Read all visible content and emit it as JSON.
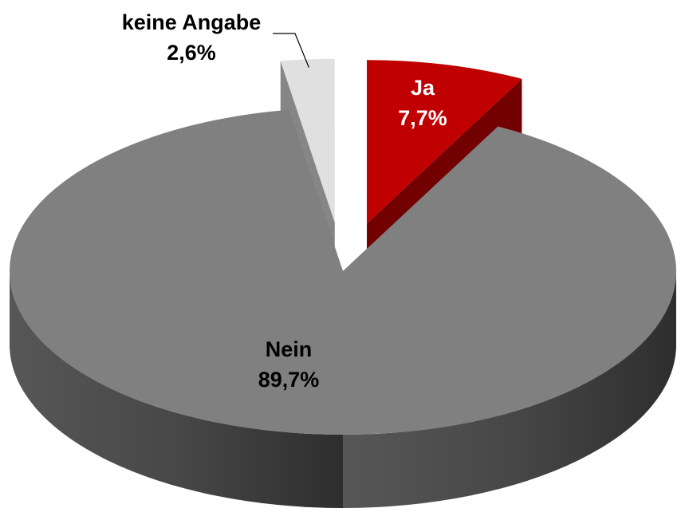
{
  "chart_data": {
    "type": "pie",
    "categories": [
      "Ja",
      "Nein",
      "keine Angabe"
    ],
    "values": [
      7.7,
      89.7,
      2.6
    ],
    "value_labels": [
      "7,7%",
      "89,7%",
      "2,6%"
    ],
    "colors": [
      "#c00000",
      "#808080",
      "#e0e0e0"
    ]
  }
}
